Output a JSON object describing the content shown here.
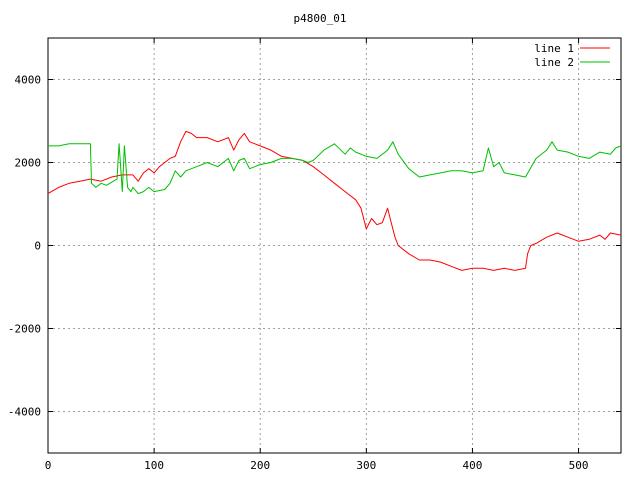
{
  "chart_data": {
    "type": "line",
    "title": "p4800_01",
    "xlabel": "",
    "ylabel": "",
    "xlim": [
      0,
      540
    ],
    "ylim": [
      -5000,
      5000
    ],
    "x_ticks": [
      0,
      100,
      200,
      300,
      400,
      500
    ],
    "y_ticks": [
      -4000,
      -2000,
      0,
      2000,
      4000
    ],
    "grid": true,
    "legend_position": "top-right",
    "series": [
      {
        "name": "line 1",
        "color": "#ff0000",
        "x": [
          0,
          10,
          20,
          30,
          40,
          50,
          60,
          70,
          80,
          85,
          90,
          95,
          100,
          105,
          110,
          115,
          120,
          125,
          130,
          135,
          140,
          150,
          160,
          170,
          175,
          180,
          185,
          190,
          200,
          210,
          220,
          230,
          240,
          250,
          260,
          270,
          280,
          290,
          295,
          300,
          305,
          310,
          315,
          320,
          323,
          327,
          330,
          340,
          350,
          360,
          370,
          380,
          390,
          400,
          410,
          420,
          430,
          440,
          450,
          452,
          455,
          460,
          470,
          480,
          490,
          500,
          510,
          520,
          525,
          530,
          540
        ],
        "y": [
          1250,
          1400,
          1500,
          1550,
          1600,
          1550,
          1650,
          1700,
          1700,
          1550,
          1750,
          1850,
          1750,
          1900,
          2000,
          2100,
          2150,
          2500,
          2750,
          2700,
          2600,
          2600,
          2500,
          2600,
          2300,
          2550,
          2700,
          2500,
          2400,
          2300,
          2150,
          2100,
          2050,
          1900,
          1700,
          1500,
          1300,
          1100,
          900,
          400,
          650,
          500,
          550,
          900,
          600,
          200,
          0,
          -200,
          -350,
          -350,
          -400,
          -500,
          -600,
          -550,
          -550,
          -600,
          -550,
          -600,
          -550,
          -200,
          0,
          50,
          200,
          300,
          200,
          100,
          150,
          250,
          150,
          300,
          250
        ]
      },
      {
        "name": "line 2",
        "color": "#00c000",
        "x": [
          0,
          10,
          20,
          30,
          40,
          41,
          45,
          50,
          55,
          65,
          67,
          70,
          72,
          75,
          78,
          80,
          85,
          90,
          95,
          100,
          110,
          115,
          120,
          125,
          130,
          140,
          150,
          160,
          170,
          175,
          180,
          185,
          190,
          200,
          210,
          220,
          230,
          240,
          245,
          250,
          260,
          270,
          280,
          285,
          290,
          300,
          310,
          320,
          325,
          330,
          340,
          350,
          360,
          370,
          380,
          390,
          400,
          410,
          415,
          420,
          425,
          430,
          440,
          450,
          460,
          470,
          475,
          480,
          490,
          500,
          510,
          520,
          530,
          535,
          540
        ],
        "y": [
          2400,
          2400,
          2450,
          2450,
          2450,
          1500,
          1400,
          1500,
          1450,
          1600,
          2450,
          1300,
          2400,
          1400,
          1300,
          1400,
          1250,
          1300,
          1400,
          1300,
          1350,
          1500,
          1800,
          1650,
          1800,
          1900,
          2000,
          1900,
          2100,
          1800,
          2050,
          2100,
          1850,
          1950,
          2000,
          2100,
          2100,
          2050,
          2000,
          2050,
          2300,
          2450,
          2200,
          2350,
          2250,
          2150,
          2100,
          2300,
          2500,
          2200,
          1850,
          1650,
          1700,
          1750,
          1800,
          1800,
          1750,
          1800,
          2350,
          1900,
          2000,
          1750,
          1700,
          1650,
          2100,
          2300,
          2500,
          2300,
          2250,
          2150,
          2100,
          2250,
          2200,
          2350,
          2400
        ]
      }
    ]
  }
}
